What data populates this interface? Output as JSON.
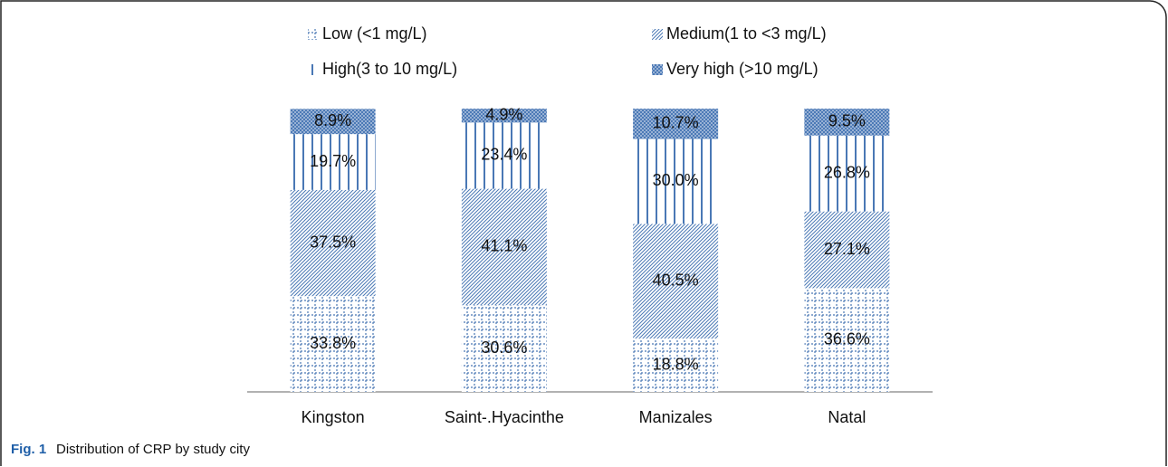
{
  "chart_data": {
    "type": "bar",
    "stacked": true,
    "figure_label": "Fig. 1",
    "caption": "Distribution of CRP by study city",
    "categories": [
      "Kingston",
      "Saint-.Hyacinthe",
      "Manizales",
      "Natal"
    ],
    "ylim": [
      0,
      100
    ],
    "series": [
      {
        "name": "Low (<1 mg/L)",
        "color": "#4a78b5",
        "values": [
          33.8,
          30.6,
          18.8,
          36.6
        ],
        "value_labels": [
          "33.8%",
          "30.6%",
          "18.8%",
          "36.6%"
        ]
      },
      {
        "name": "Medium(1 to <3 mg/L)",
        "color": "#4a78b5",
        "values": [
          37.5,
          41.1,
          40.5,
          27.1
        ],
        "value_labels": [
          "37.5%",
          "41.1%",
          "40.5%",
          "27.1%"
        ]
      },
      {
        "name": "High(3 to 10 mg/L)",
        "color": "#4a78b5",
        "values": [
          19.7,
          23.4,
          30.0,
          26.8
        ],
        "value_labels": [
          "19.7%",
          "23.4%",
          "30.0%",
          "26.8%"
        ]
      },
      {
        "name": "Very high (>10 mg/L)",
        "color": "#4a78b5",
        "values": [
          8.9,
          4.9,
          10.7,
          9.5
        ],
        "value_labels": [
          "8.9%",
          "4.9%",
          "10.7%",
          "9.5%"
        ]
      }
    ]
  }
}
